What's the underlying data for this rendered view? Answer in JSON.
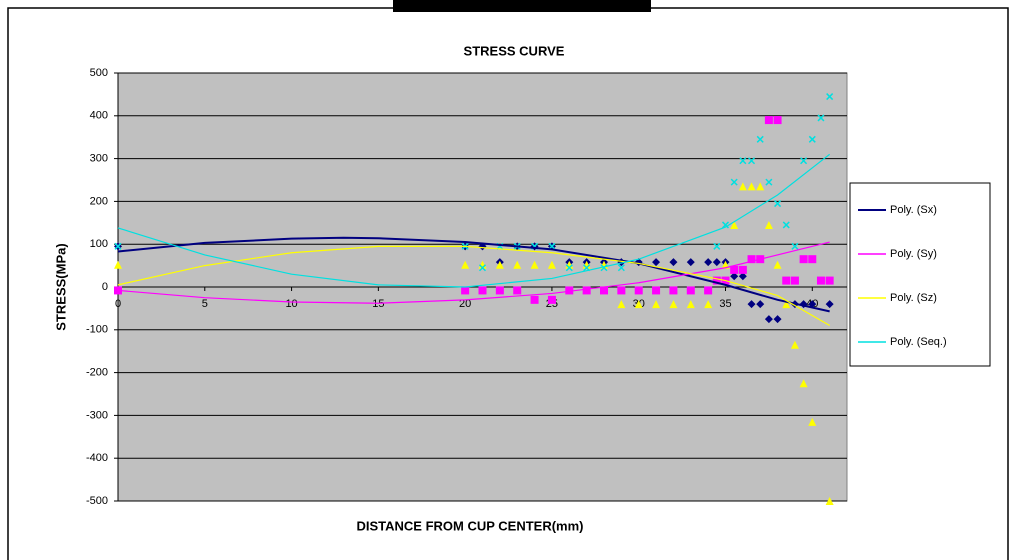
{
  "chart_data": {
    "type": "scatter",
    "title": "STRESS CURVE",
    "x_label": "DISTANCE FROM CUP CENTER(mm)",
    "y_label": "STRESS(MPa)",
    "xlim": [
      0,
      42
    ],
    "xticks": [
      0,
      5,
      10,
      15,
      20,
      25,
      30,
      35,
      40
    ],
    "ylim": [
      -500,
      500
    ],
    "yticks": [
      -500,
      -400,
      -300,
      -200,
      -100,
      0,
      100,
      200,
      300,
      400,
      500
    ],
    "grid": true,
    "legend": "right",
    "series": [
      {
        "name": "Poly. (Sx)",
        "color": "#000080",
        "marker": "diamond",
        "x": [
          0,
          20,
          21,
          22,
          23,
          24,
          25,
          26,
          27,
          28,
          29,
          30,
          31,
          32,
          33,
          34,
          34.5,
          35,
          35.5,
          36,
          36.5,
          37,
          37.5,
          38,
          39,
          39.5,
          40,
          41
        ],
        "values": [
          95,
          95,
          95,
          58,
          95,
          95,
          95,
          58,
          58,
          58,
          58,
          58,
          58,
          58,
          58,
          58,
          58,
          58,
          25,
          25,
          -40,
          -40,
          -75,
          -75,
          -40,
          -40,
          -40,
          -40
        ],
        "trend_x": [
          0,
          5,
          10,
          13,
          15,
          20,
          25,
          30,
          35,
          38,
          41
        ],
        "trend_values": [
          83,
          103,
          113,
          115,
          114,
          105,
          88,
          55,
          5,
          -30,
          -57
        ]
      },
      {
        "name": "Poly. (Sy)",
        "color": "#ff00ff",
        "marker": "square",
        "x": [
          0,
          20,
          21,
          22,
          23,
          24,
          25,
          26,
          27,
          28,
          29,
          30,
          31,
          32,
          33,
          34,
          34.5,
          35,
          35.5,
          36,
          36.5,
          37,
          37.5,
          38,
          38.5,
          39,
          39.5,
          40,
          40.5,
          41
        ],
        "values": [
          -8,
          -8,
          -8,
          -8,
          -8,
          -30,
          -30,
          -8,
          -8,
          -8,
          -8,
          -8,
          -8,
          -8,
          -8,
          -8,
          15,
          15,
          40,
          40,
          65,
          65,
          390,
          390,
          15,
          15,
          65,
          65,
          15,
          15
        ],
        "trend_x": [
          0,
          5,
          10,
          15,
          20,
          25,
          30,
          35,
          41
        ],
        "trend_values": [
          -8,
          -25,
          -35,
          -38,
          -30,
          -15,
          10,
          45,
          105
        ]
      },
      {
        "name": "Poly. (Sz)",
        "color": "#ffff00",
        "marker": "triangle",
        "x": [
          0,
          20,
          21,
          22,
          23,
          24,
          25,
          26,
          27,
          28,
          29,
          30,
          31,
          32,
          33,
          34,
          35,
          35.5,
          36,
          36.5,
          37,
          37.5,
          38,
          38.5,
          39,
          39.5,
          40,
          41
        ],
        "values": [
          52,
          52,
          52,
          52,
          52,
          52,
          52,
          52,
          52,
          52,
          -40,
          -40,
          -40,
          -40,
          -40,
          -40,
          52,
          145,
          235,
          235,
          235,
          145,
          52,
          -40,
          -135,
          -225,
          -315,
          -500
        ],
        "trend_x": [
          0,
          5,
          10,
          15,
          20,
          25,
          30,
          35,
          38,
          41
        ],
        "trend_values": [
          5,
          50,
          80,
          95,
          95,
          80,
          55,
          15,
          -20,
          -90
        ]
      },
      {
        "name": "Poly. (Seq.)",
        "color": "#00e0e0",
        "marker": "cross",
        "x": [
          0,
          20,
          21,
          22,
          23,
          24,
          25,
          26,
          27,
          28,
          29,
          34.5,
          35,
          35.5,
          36,
          36.5,
          37,
          37.5,
          38,
          38.5,
          39,
          39.5,
          40,
          40.5,
          41
        ],
        "values": [
          95,
          95,
          45,
          95,
          95,
          95,
          95,
          45,
          45,
          45,
          45,
          95,
          145,
          245,
          295,
          295,
          345,
          245,
          195,
          145,
          95,
          295,
          345,
          395,
          445
        ],
        "trend_x": [
          0,
          5,
          10,
          15,
          20,
          25,
          30,
          35,
          38,
          41
        ],
        "trend_values": [
          138,
          75,
          30,
          5,
          0,
          20,
          65,
          140,
          215,
          310
        ]
      }
    ]
  }
}
